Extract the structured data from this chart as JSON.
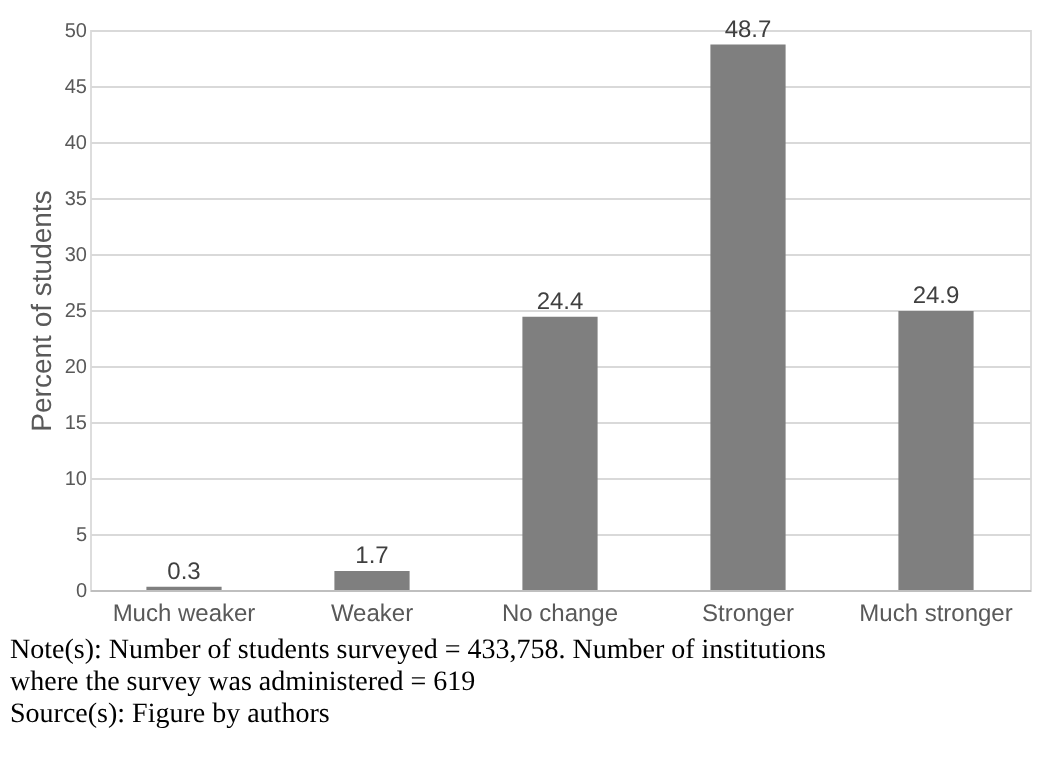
{
  "chart_data": {
    "type": "bar",
    "categories": [
      "Much weaker",
      "Weaker",
      "No change",
      "Stronger",
      "Much stronger"
    ],
    "values": [
      0.3,
      1.7,
      24.4,
      48.7,
      24.9
    ],
    "color": "#7f7f7f",
    "ylabel": "Percent of students",
    "ylim": [
      0,
      50
    ],
    "yticks": [
      0,
      5,
      10,
      15,
      20,
      25,
      30,
      35,
      40,
      45,
      50
    ],
    "grid": "y",
    "data_labels": true,
    "annotations": [
      "Note(s): Number of students surveyed = 433,758. Number of institutions where the survey was administered = 619",
      "Source(s): Figure by authors"
    ]
  }
}
